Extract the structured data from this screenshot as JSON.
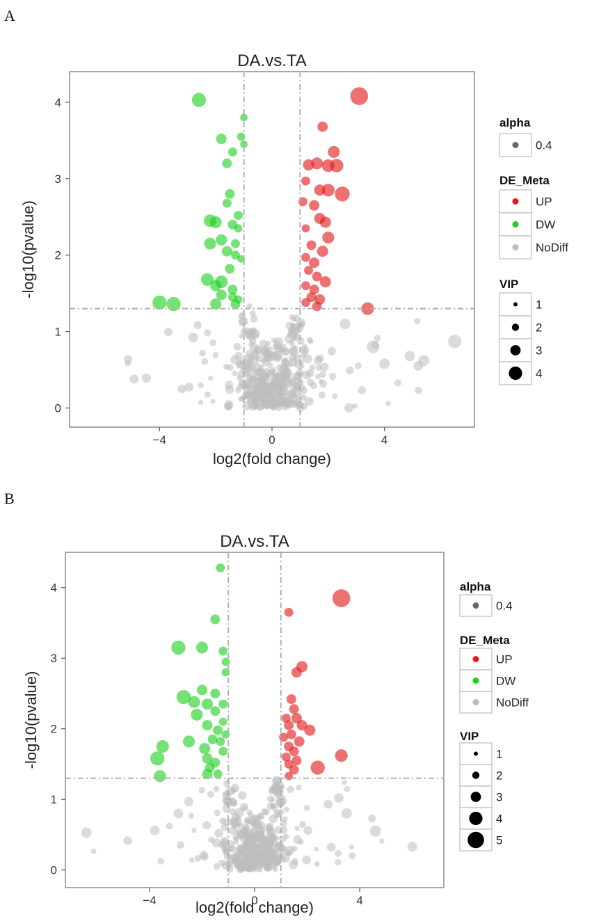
{
  "panels": [
    {
      "letter": "A"
    },
    {
      "letter": "B"
    }
  ],
  "chart_data": [
    {
      "type": "scatter",
      "title": "DA.vs.TA",
      "xlabel": "log2(fold change)",
      "ylabel": "-log10(pvalue)",
      "xlim": [
        -7.2,
        7.2
      ],
      "ylim": [
        -0.25,
        4.4
      ],
      "xticks": [
        -4,
        0,
        4
      ],
      "xtick_labels": [
        "−4",
        "0",
        "4"
      ],
      "yticks": [
        0,
        1,
        2,
        3,
        4
      ],
      "ytick_labels": [
        "0",
        "1",
        "2",
        "3",
        "4"
      ],
      "thresholds": {
        "x": [
          -1,
          1
        ],
        "y": 1.3
      },
      "legend": {
        "alpha": {
          "title": "alpha",
          "value": "0.4"
        },
        "de_meta": {
          "title": "DE_Meta",
          "entries": [
            {
              "label": "UP",
              "color": "#e41a1c"
            },
            {
              "label": "DW",
              "color": "#1fd11f"
            },
            {
              "label": "NoDiff",
              "color": "#bdbdbd"
            }
          ]
        },
        "vip": {
          "title": "VIP",
          "entries": [
            "1",
            "2",
            "3",
            "4"
          ]
        }
      },
      "series": [
        {
          "name": "UP",
          "color": "#e41a1c",
          "points": [
            {
              "x": 3.1,
              "y": 4.08,
              "vip": 4
            },
            {
              "x": 1.8,
              "y": 3.68,
              "vip": 2
            },
            {
              "x": 2.2,
              "y": 3.35,
              "vip": 2.4
            },
            {
              "x": 1.3,
              "y": 3.18,
              "vip": 2.2
            },
            {
              "x": 1.6,
              "y": 3.2,
              "vip": 2.4
            },
            {
              "x": 2.0,
              "y": 3.17,
              "vip": 2.6
            },
            {
              "x": 2.3,
              "y": 3.17,
              "vip": 2.8
            },
            {
              "x": 1.7,
              "y": 2.85,
              "vip": 2.2
            },
            {
              "x": 2.0,
              "y": 2.85,
              "vip": 2.6
            },
            {
              "x": 2.5,
              "y": 2.8,
              "vip": 3.2
            },
            {
              "x": 1.2,
              "y": 2.97,
              "vip": 1.6
            },
            {
              "x": 1.1,
              "y": 2.7,
              "vip": 1.6
            },
            {
              "x": 1.5,
              "y": 2.65,
              "vip": 2
            },
            {
              "x": 1.7,
              "y": 2.48,
              "vip": 2.2
            },
            {
              "x": 1.9,
              "y": 2.43,
              "vip": 2.2
            },
            {
              "x": 1.2,
              "y": 2.35,
              "vip": 1.4
            },
            {
              "x": 2.0,
              "y": 2.23,
              "vip": 2.4
            },
            {
              "x": 1.4,
              "y": 2.13,
              "vip": 1.8
            },
            {
              "x": 1.8,
              "y": 2.05,
              "vip": 2.2
            },
            {
              "x": 1.2,
              "y": 1.97,
              "vip": 1.6
            },
            {
              "x": 1.5,
              "y": 1.9,
              "vip": 2
            },
            {
              "x": 1.3,
              "y": 1.8,
              "vip": 1.6
            },
            {
              "x": 1.6,
              "y": 1.72,
              "vip": 1.8
            },
            {
              "x": 1.9,
              "y": 1.65,
              "vip": 2.2
            },
            {
              "x": 1.2,
              "y": 1.6,
              "vip": 1.6
            },
            {
              "x": 1.5,
              "y": 1.55,
              "vip": 1.8
            },
            {
              "x": 1.4,
              "y": 1.45,
              "vip": 1.8
            },
            {
              "x": 1.7,
              "y": 1.42,
              "vip": 2
            },
            {
              "x": 1.2,
              "y": 1.38,
              "vip": 1.6
            },
            {
              "x": 1.6,
              "y": 1.33,
              "vip": 1.8
            },
            {
              "x": 3.4,
              "y": 1.3,
              "vip": 2.6
            }
          ]
        },
        {
          "name": "DW",
          "color": "#1fd11f",
          "points": [
            {
              "x": -2.6,
              "y": 4.03,
              "vip": 3
            },
            {
              "x": -1.0,
              "y": 3.8,
              "vip": 1.2
            },
            {
              "x": -1.1,
              "y": 3.55,
              "vip": 1.4
            },
            {
              "x": -1.8,
              "y": 3.52,
              "vip": 2
            },
            {
              "x": -1.0,
              "y": 3.45,
              "vip": 1.2
            },
            {
              "x": -1.4,
              "y": 3.35,
              "vip": 1.6
            },
            {
              "x": -1.6,
              "y": 3.2,
              "vip": 1.8
            },
            {
              "x": -1.5,
              "y": 2.8,
              "vip": 1.8
            },
            {
              "x": -1.6,
              "y": 2.68,
              "vip": 1.6
            },
            {
              "x": -1.2,
              "y": 2.52,
              "vip": 1.6
            },
            {
              "x": -2.2,
              "y": 2.45,
              "vip": 2.6
            },
            {
              "x": -2.0,
              "y": 2.43,
              "vip": 2.4
            },
            {
              "x": -1.4,
              "y": 2.4,
              "vip": 1.8
            },
            {
              "x": -1.2,
              "y": 2.35,
              "vip": 1.4
            },
            {
              "x": -1.8,
              "y": 2.2,
              "vip": 2.2
            },
            {
              "x": -1.3,
              "y": 2.15,
              "vip": 1.6
            },
            {
              "x": -2.2,
              "y": 2.15,
              "vip": 2.4
            },
            {
              "x": -1.6,
              "y": 2.05,
              "vip": 2
            },
            {
              "x": -1.3,
              "y": 2.0,
              "vip": 1.6
            },
            {
              "x": -1.1,
              "y": 1.95,
              "vip": 1.2
            },
            {
              "x": -1.5,
              "y": 1.82,
              "vip": 1.8
            },
            {
              "x": -2.3,
              "y": 1.68,
              "vip": 2.6
            },
            {
              "x": -1.8,
              "y": 1.65,
              "vip": 2.6
            },
            {
              "x": -2.0,
              "y": 1.6,
              "vip": 2.2
            },
            {
              "x": -1.4,
              "y": 1.55,
              "vip": 1.8
            },
            {
              "x": -1.8,
              "y": 1.48,
              "vip": 2
            },
            {
              "x": -1.4,
              "y": 1.45,
              "vip": 1.6
            },
            {
              "x": -1.2,
              "y": 1.42,
              "vip": 1.4
            },
            {
              "x": -4.0,
              "y": 1.38,
              "vip": 3
            },
            {
              "x": -3.5,
              "y": 1.36,
              "vip": 3
            },
            {
              "x": -2.0,
              "y": 1.36,
              "vip": 2.2
            },
            {
              "x": -1.3,
              "y": 1.36,
              "vip": 1.8
            }
          ]
        },
        {
          "name": "NoDiff",
          "color": "#bdbdbd",
          "seed": 1234,
          "count": 420,
          "points": [
            {
              "x": 6.5,
              "y": 0.87,
              "vip": 2.8
            },
            {
              "x": 5.4,
              "y": 0.62,
              "vip": 2.2
            },
            {
              "x": 4.9,
              "y": 0.68,
              "vip": 2
            },
            {
              "x": 3.6,
              "y": 0.8,
              "vip": 2.6
            },
            {
              "x": -4.9,
              "y": 0.38,
              "vip": 1.6
            },
            {
              "x": 4.0,
              "y": 0.58,
              "vip": 2
            },
            {
              "x": 5.2,
              "y": 0.55,
              "vip": 1.8
            },
            {
              "x": 2.6,
              "y": 1.1,
              "vip": 2
            },
            {
              "x": -2.8,
              "y": 0.92,
              "vip": 1.8
            }
          ]
        }
      ]
    },
    {
      "type": "scatter",
      "title": "DA.vs.TA",
      "xlabel": "log2(fold change)",
      "ylabel": "-log10(pvalue)",
      "xlim": [
        -7.2,
        7.2
      ],
      "ylim": [
        -0.25,
        4.5
      ],
      "xticks": [
        -4,
        0,
        4
      ],
      "xtick_labels": [
        "−4",
        "0",
        "4"
      ],
      "yticks": [
        0,
        1,
        2,
        3,
        4
      ],
      "ytick_labels": [
        "0",
        "1",
        "2",
        "3",
        "4"
      ],
      "thresholds": {
        "x": [
          -1,
          1
        ],
        "y": 1.3
      },
      "legend": {
        "alpha": {
          "title": "alpha",
          "value": "0.4"
        },
        "de_meta": {
          "title": "DE_Meta",
          "entries": [
            {
              "label": "UP",
              "color": "#e41a1c"
            },
            {
              "label": "DW",
              "color": "#1fd11f"
            },
            {
              "label": "NoDiff",
              "color": "#bdbdbd"
            }
          ]
        },
        "vip": {
          "title": "VIP",
          "entries": [
            "1",
            "2",
            "3",
            "4",
            "5"
          ]
        }
      },
      "series": [
        {
          "name": "UP",
          "color": "#e41a1c",
          "points": [
            {
              "x": 3.3,
              "y": 3.85,
              "vip": 4
            },
            {
              "x": 1.3,
              "y": 3.65,
              "vip": 1.6
            },
            {
              "x": 1.8,
              "y": 2.88,
              "vip": 2.2
            },
            {
              "x": 1.6,
              "y": 2.8,
              "vip": 2
            },
            {
              "x": 1.4,
              "y": 2.42,
              "vip": 1.8
            },
            {
              "x": 1.5,
              "y": 2.28,
              "vip": 1.8
            },
            {
              "x": 1.2,
              "y": 2.15,
              "vip": 1.6
            },
            {
              "x": 1.6,
              "y": 2.15,
              "vip": 2
            },
            {
              "x": 1.3,
              "y": 2.05,
              "vip": 1.8
            },
            {
              "x": 1.8,
              "y": 2.05,
              "vip": 2
            },
            {
              "x": 2.1,
              "y": 1.98,
              "vip": 2.2
            },
            {
              "x": 1.4,
              "y": 1.92,
              "vip": 1.8
            },
            {
              "x": 1.1,
              "y": 1.88,
              "vip": 1.6
            },
            {
              "x": 1.7,
              "y": 1.82,
              "vip": 2
            },
            {
              "x": 1.3,
              "y": 1.75,
              "vip": 1.8
            },
            {
              "x": 1.5,
              "y": 1.68,
              "vip": 1.8
            },
            {
              "x": 1.2,
              "y": 1.6,
              "vip": 1.6
            },
            {
              "x": 1.6,
              "y": 1.55,
              "vip": 1.8
            },
            {
              "x": 1.3,
              "y": 1.5,
              "vip": 1.6
            },
            {
              "x": 1.5,
              "y": 1.42,
              "vip": 1.8
            },
            {
              "x": 1.3,
              "y": 1.33,
              "vip": 1.4
            },
            {
              "x": 3.3,
              "y": 1.62,
              "vip": 2.6
            },
            {
              "x": 2.4,
              "y": 1.45,
              "vip": 3
            }
          ]
        },
        {
          "name": "DW",
          "color": "#1fd11f",
          "points": [
            {
              "x": -1.3,
              "y": 4.28,
              "vip": 1.6
            },
            {
              "x": -1.5,
              "y": 3.55,
              "vip": 1.8
            },
            {
              "x": -2.9,
              "y": 3.15,
              "vip": 3
            },
            {
              "x": -2.0,
              "y": 3.15,
              "vip": 2.4
            },
            {
              "x": -1.2,
              "y": 3.1,
              "vip": 1.6
            },
            {
              "x": -1.1,
              "y": 2.95,
              "vip": 1.4
            },
            {
              "x": -1.1,
              "y": 2.8,
              "vip": 1.4
            },
            {
              "x": -2.0,
              "y": 2.55,
              "vip": 2
            },
            {
              "x": -2.7,
              "y": 2.45,
              "vip": 3
            },
            {
              "x": -1.5,
              "y": 2.5,
              "vip": 1.8
            },
            {
              "x": -2.3,
              "y": 2.38,
              "vip": 2.4
            },
            {
              "x": -1.8,
              "y": 2.35,
              "vip": 2.2
            },
            {
              "x": -1.2,
              "y": 2.35,
              "vip": 1.6
            },
            {
              "x": -1.5,
              "y": 2.25,
              "vip": 1.8
            },
            {
              "x": -2.2,
              "y": 2.2,
              "vip": 2.4
            },
            {
              "x": -1.2,
              "y": 2.1,
              "vip": 1.4
            },
            {
              "x": -1.8,
              "y": 2.05,
              "vip": 2
            },
            {
              "x": -1.4,
              "y": 1.98,
              "vip": 1.8
            },
            {
              "x": -1.1,
              "y": 1.92,
              "vip": 1.4
            },
            {
              "x": -1.6,
              "y": 1.85,
              "vip": 1.8
            },
            {
              "x": -2.5,
              "y": 1.82,
              "vip": 2.4
            },
            {
              "x": -1.3,
              "y": 1.82,
              "vip": 1.6
            },
            {
              "x": -3.5,
              "y": 1.75,
              "vip": 2.6
            },
            {
              "x": -1.9,
              "y": 1.72,
              "vip": 2.2
            },
            {
              "x": -1.2,
              "y": 1.68,
              "vip": 1.6
            },
            {
              "x": -3.7,
              "y": 1.58,
              "vip": 3
            },
            {
              "x": -1.8,
              "y": 1.58,
              "vip": 2
            },
            {
              "x": -1.5,
              "y": 1.52,
              "vip": 1.8
            },
            {
              "x": -1.7,
              "y": 1.45,
              "vip": 1.8
            },
            {
              "x": -3.6,
              "y": 1.33,
              "vip": 2.4
            },
            {
              "x": -1.8,
              "y": 1.36,
              "vip": 2
            },
            {
              "x": -1.4,
              "y": 1.36,
              "vip": 1.6
            }
          ]
        },
        {
          "name": "NoDiff",
          "color": "#bdbdbd",
          "seed": 987,
          "count": 420,
          "points": [
            {
              "x": -6.4,
              "y": 0.53,
              "vip": 2
            },
            {
              "x": 6.0,
              "y": 0.33,
              "vip": 1.8
            },
            {
              "x": 4.6,
              "y": 0.55,
              "vip": 2.2
            },
            {
              "x": 3.5,
              "y": 0.8,
              "vip": 2
            },
            {
              "x": -3.8,
              "y": 0.56,
              "vip": 1.8
            },
            {
              "x": -2.9,
              "y": 0.8,
              "vip": 1.8
            },
            {
              "x": 3.2,
              "y": 1.02,
              "vip": 1.8
            }
          ]
        }
      ]
    }
  ]
}
